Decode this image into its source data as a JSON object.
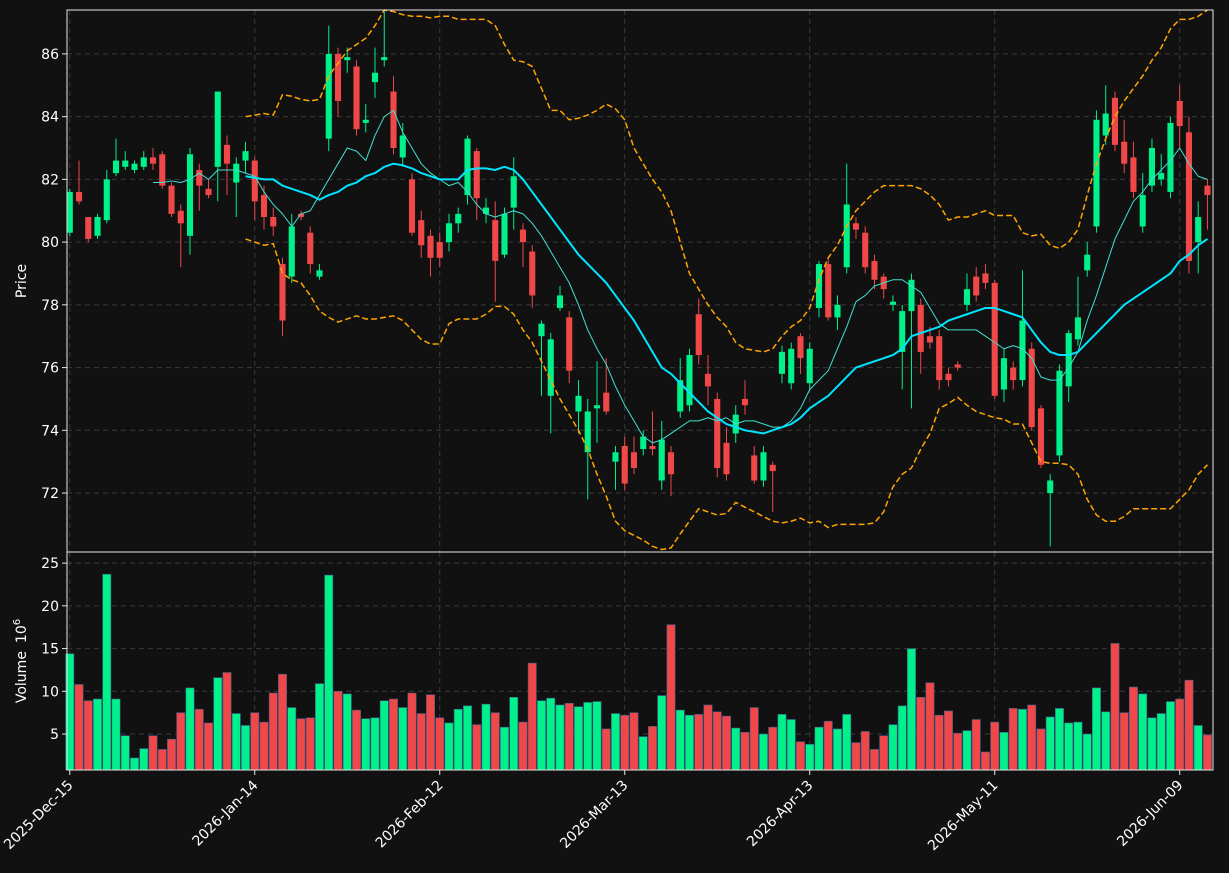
{
  "chart_data": {
    "type": "candlestick",
    "ylabel": "Price",
    "volume_ylabel": "Volume",
    "volume_scale_base": "10",
    "volume_scale_exponent": "6",
    "xlim": [
      -0.3,
      123.6
    ],
    "xticks": [
      {
        "value": 0,
        "label": "2025-Dec-15"
      },
      {
        "value": 20,
        "label": "2026-Jan-14"
      },
      {
        "value": 40,
        "label": "2026-Feb-12"
      },
      {
        "value": 60,
        "label": "2026-Mar-13"
      },
      {
        "value": 80,
        "label": "2026-Apr-13"
      },
      {
        "value": 100,
        "label": "2026-May-11"
      },
      {
        "value": 120,
        "label": "2026-Jun-09"
      }
    ],
    "ylim": [
      70.12,
      87.4
    ],
    "yticks": [
      72,
      74,
      76,
      78,
      80,
      82,
      84,
      86
    ],
    "volume_ylim": [
      0.79,
      26.3
    ],
    "volume_yticks": [
      5,
      10,
      15,
      20,
      25
    ],
    "grid": true,
    "up_color": "#00f08a",
    "down_color": "#f04848",
    "open": [
      80.3,
      81.6,
      80.8,
      80.2,
      80.7,
      82.2,
      82.4,
      82.3,
      82.4,
      82.7,
      82.8,
      81.8,
      81.0,
      80.2,
      82.3,
      81.7,
      82.4,
      83.1,
      81.9,
      82.6,
      82.6,
      81.5,
      80.8,
      79.3,
      78.9,
      80.9,
      80.3,
      78.9,
      83.3,
      86.0,
      85.8,
      85.6,
      83.8,
      85.1,
      85.8,
      84.8,
      82.7,
      82.0,
      80.7,
      80.2,
      80.0,
      80.0,
      80.6,
      81.5,
      82.9,
      80.9,
      80.7,
      79.6,
      81.1,
      80.4,
      79.7,
      77.0,
      75.1,
      77.9,
      77.6,
      74.6,
      73.3,
      74.7,
      75.2,
      73.0,
      73.5,
      73.3,
      73.4,
      73.5,
      72.4,
      73.3,
      74.6,
      74.8,
      77.7,
      75.8,
      75.0,
      73.6,
      73.9,
      75.0,
      73.2,
      72.4,
      72.9,
      75.8,
      75.5,
      77.0,
      75.5,
      77.9,
      79.3,
      77.6,
      79.2,
      80.6,
      80.3,
      79.4,
      78.9,
      78.0,
      76.5,
      77.8,
      78.0,
      77.0,
      77.0,
      75.8,
      76.1,
      78.0,
      78.9,
      79.0,
      78.7,
      75.3,
      76.0,
      75.6,
      76.6,
      74.7,
      72.0,
      73.2,
      75.4,
      76.9,
      79.1,
      80.5,
      83.4,
      84.6,
      83.2,
      82.7,
      80.5,
      81.8,
      82.0,
      81.6,
      84.5,
      83.5,
      80.0,
      81.8
    ],
    "high": [
      81.7,
      82.6,
      80.8,
      80.9,
      82.3,
      83.3,
      82.9,
      82.6,
      82.9,
      83.0,
      82.9,
      81.9,
      81.2,
      83.0,
      82.5,
      82.0,
      84.8,
      83.4,
      82.7,
      83.2,
      82.7,
      81.8,
      81.1,
      79.5,
      80.9,
      81.0,
      80.5,
      79.3,
      86.9,
      86.2,
      86.2,
      85.8,
      84.4,
      86.2,
      87.4,
      85.3,
      83.8,
      82.2,
      81.0,
      80.4,
      80.3,
      80.9,
      81.1,
      83.4,
      83.0,
      81.4,
      81.3,
      81.1,
      82.7,
      80.6,
      79.9,
      77.5,
      77.1,
      78.6,
      77.8,
      75.6,
      75.0,
      76.2,
      76.3,
      73.5,
      73.8,
      73.8,
      74.0,
      74.6,
      74.3,
      73.5,
      76.3,
      76.6,
      78.2,
      76.4,
      75.2,
      74.1,
      74.8,
      75.6,
      73.5,
      73.5,
      73.0,
      76.7,
      76.8,
      77.1,
      76.8,
      79.4,
      79.5,
      78.3,
      82.5,
      80.8,
      80.5,
      79.6,
      79.0,
      78.3,
      78.0,
      79.0,
      78.2,
      77.3,
      77.2,
      76.0,
      76.2,
      79.0,
      79.2,
      79.3,
      78.8,
      76.6,
      76.2,
      79.1,
      76.8,
      74.8,
      72.6,
      76.1,
      77.2,
      78.9,
      80.0,
      84.2,
      85.0,
      84.8,
      83.9,
      83.2,
      82.2,
      83.3,
      82.8,
      84.0,
      85.0,
      84.0,
      81.3,
      82.0
    ],
    "low": [
      80.2,
      81.2,
      80.0,
      80.1,
      80.6,
      82.1,
      82.3,
      82.2,
      82.3,
      82.3,
      81.7,
      80.8,
      79.2,
      79.6,
      81.0,
      81.4,
      81.3,
      81.5,
      80.8,
      82.2,
      80.7,
      80.4,
      80.2,
      77.0,
      78.7,
      80.7,
      79.0,
      78.8,
      82.9,
      84.0,
      85.4,
      83.4,
      83.5,
      84.6,
      85.6,
      82.8,
      82.4,
      80.2,
      79.5,
      78.9,
      79.2,
      79.7,
      80.3,
      81.2,
      80.7,
      80.6,
      78.1,
      79.5,
      80.4,
      79.2,
      77.9,
      75.1,
      73.9,
      77.8,
      75.5,
      73.9,
      71.8,
      73.6,
      74.5,
      72.1,
      72.1,
      72.6,
      73.2,
      73.2,
      72.1,
      71.9,
      74.4,
      74.6,
      76.1,
      74.8,
      72.5,
      72.4,
      73.6,
      74.5,
      72.3,
      72.2,
      71.4,
      75.5,
      75.3,
      75.8,
      75.3,
      77.6,
      77.5,
      77.2,
      79.0,
      80.1,
      79.0,
      78.5,
      78.2,
      77.8,
      75.3,
      74.7,
      75.8,
      76.6,
      75.3,
      75.4,
      75.9,
      77.8,
      78.1,
      78.5,
      75.0,
      74.9,
      75.3,
      75.4,
      74.0,
      72.8,
      70.3,
      73.0,
      74.9,
      76.7,
      78.9,
      80.3,
      83.1,
      82.9,
      82.2,
      81.4,
      80.3,
      81.6,
      81.8,
      81.4,
      83.0,
      79.0,
      79.0,
      80.4
    ],
    "close": [
      81.6,
      81.3,
      80.1,
      80.8,
      82.0,
      82.6,
      82.6,
      82.5,
      82.7,
      82.5,
      81.8,
      80.9,
      80.6,
      82.8,
      81.8,
      81.5,
      84.8,
      82.5,
      82.5,
      82.9,
      81.3,
      80.8,
      80.5,
      77.5,
      80.5,
      80.8,
      79.3,
      79.1,
      86.0,
      84.5,
      85.9,
      83.6,
      83.9,
      85.4,
      85.9,
      83.0,
      83.4,
      80.3,
      79.9,
      79.5,
      79.5,
      80.6,
      80.9,
      83.3,
      81.4,
      81.1,
      79.4,
      80.9,
      82.1,
      80.0,
      78.3,
      77.4,
      76.9,
      78.3,
      75.9,
      75.1,
      74.6,
      74.8,
      74.6,
      73.3,
      72.3,
      72.8,
      73.8,
      73.4,
      73.7,
      72.6,
      75.6,
      76.4,
      76.4,
      75.4,
      72.8,
      72.6,
      74.5,
      74.8,
      72.4,
      73.3,
      72.7,
      76.5,
      76.6,
      76.3,
      76.6,
      79.3,
      77.6,
      78.0,
      81.2,
      80.4,
      79.2,
      78.8,
      78.5,
      78.1,
      77.8,
      78.8,
      76.5,
      76.8,
      75.6,
      75.6,
      76.0,
      78.5,
      78.3,
      78.7,
      75.1,
      76.3,
      75.6,
      77.5,
      74.1,
      72.9,
      72.4,
      75.9,
      77.1,
      77.6,
      79.6,
      83.9,
      84.1,
      83.1,
      82.5,
      81.6,
      81.5,
      83.0,
      82.2,
      83.8,
      83.7,
      79.4,
      80.8,
      81.5
    ],
    "volume": [
      14.4,
      10.8,
      8.9,
      9.1,
      23.7,
      9.1,
      4.8,
      2.2,
      3.3,
      4.8,
      3.2,
      4.4,
      7.5,
      10.4,
      7.9,
      6.3,
      11.6,
      12.2,
      7.4,
      6.0,
      7.5,
      6.4,
      9.8,
      12.0,
      8.1,
      6.8,
      6.9,
      10.9,
      23.6,
      10.0,
      9.7,
      7.8,
      6.8,
      6.9,
      8.9,
      9.1,
      8.1,
      9.8,
      7.4,
      9.6,
      6.9,
      6.3,
      7.9,
      8.3,
      6.1,
      8.5,
      7.5,
      5.8,
      9.3,
      6.4,
      13.3,
      8.9,
      9.2,
      8.4,
      8.6,
      8.2,
      8.7,
      8.8,
      5.6,
      7.4,
      7.2,
      7.5,
      4.7,
      5.9,
      9.5,
      17.8,
      7.8,
      7.2,
      7.3,
      8.4,
      7.6,
      7.1,
      5.7,
      5.2,
      8.1,
      5.0,
      5.8,
      7.3,
      6.7,
      4.1,
      3.8,
      5.8,
      6.5,
      5.6,
      7.3,
      4.0,
      5.3,
      3.2,
      4.8,
      6.1,
      8.3,
      15.0,
      9.3,
      11.0,
      7.2,
      7.7,
      5.1,
      5.4,
      6.7,
      2.9,
      6.4,
      5.2,
      8.0,
      7.9,
      8.4,
      5.6,
      7.0,
      8.0,
      6.3,
      6.4,
      5.0,
      10.4,
      7.6,
      15.6,
      7.5,
      10.5,
      9.7,
      6.9,
      7.4,
      8.8,
      9.1,
      11.3,
      6.0,
      4.9
    ],
    "lines": [
      {
        "color": "#ffa500",
        "width": 1.5,
        "style": "dashed",
        "values": [
          null,
          null,
          null,
          null,
          null,
          null,
          null,
          null,
          null,
          null,
          null,
          null,
          null,
          null,
          null,
          null,
          null,
          null,
          null,
          84.0,
          84.05,
          84.1,
          84.05,
          84.7,
          84.65,
          84.55,
          84.5,
          84.55,
          85.3,
          85.7,
          86.1,
          86.3,
          86.5,
          86.9,
          87.4,
          87.35,
          87.25,
          87.2,
          87.2,
          87.15,
          87.2,
          87.2,
          87.1,
          87.1,
          87.1,
          87.1,
          86.9,
          86.3,
          85.8,
          85.75,
          85.6,
          84.9,
          84.2,
          84.2,
          83.9,
          83.95,
          84.05,
          84.2,
          84.4,
          84.25,
          83.9,
          83.0,
          82.5,
          82.0,
          81.6,
          81.0,
          80.0,
          79.0,
          78.5,
          78.0,
          77.6,
          77.3,
          76.8,
          76.6,
          76.55,
          76.5,
          76.6,
          77.0,
          77.3,
          77.5,
          77.9,
          78.8,
          79.5,
          79.9,
          80.5,
          81.0,
          81.3,
          81.6,
          81.8,
          81.8,
          81.8,
          81.8,
          81.7,
          81.5,
          81.2,
          80.7,
          80.8,
          80.8,
          80.9,
          81.0,
          80.85,
          80.85,
          80.85,
          80.3,
          80.2,
          80.25,
          79.9,
          79.8,
          80.0,
          80.4,
          81.5,
          82.5,
          83.3,
          84.0,
          84.5,
          84.9,
          85.3,
          85.8,
          86.2,
          86.8,
          87.1,
          87.1,
          87.2,
          87.4
        ]
      },
      {
        "color": "#ffa500",
        "width": 1.5,
        "style": "dashed",
        "values": [
          null,
          null,
          null,
          null,
          null,
          null,
          null,
          null,
          null,
          null,
          null,
          null,
          null,
          null,
          null,
          null,
          null,
          null,
          null,
          80.1,
          80.0,
          79.9,
          79.95,
          79.0,
          78.8,
          78.7,
          78.3,
          77.8,
          77.6,
          77.45,
          77.55,
          77.65,
          77.55,
          77.55,
          77.6,
          77.65,
          77.5,
          77.2,
          76.9,
          76.75,
          76.75,
          77.4,
          77.55,
          77.55,
          77.55,
          77.7,
          77.95,
          77.95,
          77.7,
          77.2,
          76.8,
          76.2,
          75.6,
          75.0,
          74.5,
          74.0,
          73.4,
          72.6,
          71.9,
          71.1,
          70.8,
          70.65,
          70.5,
          70.3,
          70.2,
          70.25,
          70.7,
          71.1,
          71.5,
          71.4,
          71.3,
          71.35,
          71.7,
          71.55,
          71.4,
          71.25,
          71.1,
          71.05,
          71.1,
          71.2,
          71.05,
          71.1,
          70.9,
          71.0,
          71.0,
          71.0,
          71.0,
          71.05,
          71.4,
          72.2,
          72.6,
          72.8,
          73.4,
          73.9,
          74.7,
          74.85,
          75.05,
          74.8,
          74.6,
          74.5,
          74.4,
          74.35,
          74.2,
          74.2,
          73.6,
          73.0,
          72.95,
          72.95,
          72.9,
          72.6,
          71.8,
          71.3,
          71.1,
          71.1,
          71.25,
          71.5,
          71.5,
          71.5,
          71.5,
          71.5,
          71.8,
          72.1,
          72.6,
          72.9
        ]
      },
      {
        "color": "#40e0d0",
        "width": 1,
        "style": "solid",
        "values": [
          null,
          null,
          null,
          null,
          null,
          null,
          null,
          null,
          null,
          81.9,
          81.9,
          81.95,
          81.9,
          82.0,
          82.2,
          82.0,
          82.3,
          82.3,
          82.3,
          82.2,
          82.1,
          81.6,
          81.2,
          80.9,
          80.5,
          80.9,
          81.0,
          81.5,
          82.0,
          82.5,
          83.0,
          82.9,
          82.6,
          83.4,
          84.0,
          84.2,
          83.5,
          83.0,
          82.5,
          82.2,
          82.0,
          81.8,
          81.9,
          81.6,
          81.2,
          80.9,
          80.8,
          80.9,
          81.0,
          80.9,
          80.6,
          80.2,
          79.7,
          79.2,
          78.7,
          78.0,
          77.2,
          76.6,
          76.1,
          75.4,
          74.8,
          74.3,
          73.8,
          73.6,
          73.7,
          73.9,
          74.1,
          74.3,
          74.3,
          74.4,
          74.3,
          74.4,
          74.2,
          74.3,
          74.3,
          74.2,
          74.1,
          74.1,
          74.3,
          74.7,
          75.3,
          75.6,
          75.9,
          76.6,
          77.3,
          78.1,
          78.3,
          78.6,
          78.7,
          78.8,
          78.8,
          78.6,
          78.4,
          77.9,
          77.4,
          77.2,
          77.2,
          77.2,
          77.2,
          77.0,
          76.8,
          76.6,
          76.7,
          76.6,
          76.3,
          75.7,
          75.6,
          75.6,
          76.0,
          76.5,
          77.5,
          78.3,
          79.2,
          80.1,
          80.7,
          81.3,
          81.6,
          82.0,
          82.3,
          82.6,
          83.0,
          82.5,
          82.1,
          82.0
        ]
      },
      {
        "color": "#00e5ff",
        "width": 2,
        "style": "solid",
        "values": [
          null,
          null,
          null,
          null,
          null,
          null,
          null,
          null,
          null,
          null,
          null,
          null,
          null,
          null,
          null,
          null,
          null,
          null,
          null,
          82.1,
          82.05,
          82.0,
          82.0,
          81.8,
          81.7,
          81.6,
          81.5,
          81.35,
          81.5,
          81.6,
          81.8,
          81.9,
          82.1,
          82.2,
          82.4,
          82.5,
          82.45,
          82.35,
          82.2,
          82.1,
          82.0,
          82.0,
          82.0,
          82.3,
          82.35,
          82.35,
          82.3,
          82.4,
          82.3,
          82.0,
          81.6,
          81.2,
          80.8,
          80.4,
          80.0,
          79.6,
          79.3,
          79.0,
          78.7,
          78.3,
          77.9,
          77.5,
          77.0,
          76.5,
          76.0,
          75.8,
          75.5,
          75.2,
          74.9,
          74.6,
          74.4,
          74.2,
          74.1,
          74.0,
          73.95,
          73.9,
          74.0,
          74.1,
          74.2,
          74.4,
          74.7,
          74.9,
          75.1,
          75.4,
          75.7,
          76.0,
          76.1,
          76.2,
          76.3,
          76.4,
          76.6,
          77.0,
          77.1,
          77.2,
          77.3,
          77.5,
          77.6,
          77.7,
          77.8,
          77.9,
          77.9,
          77.8,
          77.7,
          77.6,
          77.2,
          76.8,
          76.5,
          76.4,
          76.4,
          76.5,
          76.8,
          77.1,
          77.4,
          77.7,
          78.0,
          78.2,
          78.4,
          78.6,
          78.8,
          79.0,
          79.4,
          79.6,
          79.9,
          80.1
        ]
      }
    ]
  }
}
